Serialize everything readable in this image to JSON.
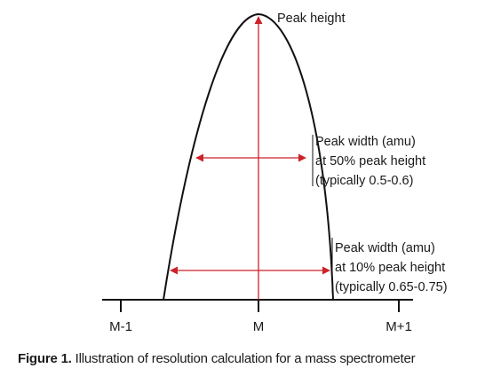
{
  "labels": {
    "peak_height": "Peak height",
    "width50": [
      "Peak width (amu)",
      "at 50% peak height",
      "(typically 0.5-0.6)"
    ],
    "width10": [
      "Peak width (amu)",
      "at 10% peak height",
      "(typically 0.65-0.75)"
    ]
  },
  "axis": {
    "ticks": [
      "M-1",
      "M",
      "M+1"
    ]
  },
  "caption": {
    "figure": "Figure 1.",
    "text": " Illustration of resolution calculation for a mass spectrometer"
  },
  "colors": {
    "curve": "#111111",
    "arrow": "#cc2229",
    "axis": "#111111",
    "text": "#1a1a1a"
  }
}
